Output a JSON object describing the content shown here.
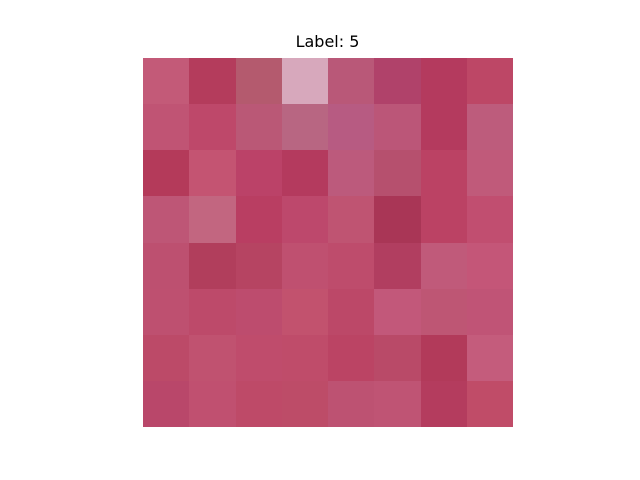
{
  "figure": {
    "title": "Label: 5"
  },
  "image": {
    "rows": 8,
    "cols": 8,
    "pixels": [
      [
        "#c35a78",
        "#b43c5c",
        "#b45a6e",
        "#d7a8bc",
        "#b95878",
        "#b0426a",
        "#b43a5e",
        "#bd4766"
      ],
      [
        "#c05474",
        "#be486a",
        "#ba5876",
        "#b86682",
        "#b75b82",
        "#bb5678",
        "#b43a5e",
        "#bd5c7c"
      ],
      [
        "#b43a5a",
        "#c45472",
        "#bb4268",
        "#b43a5e",
        "#bc5a7c",
        "#b6506e",
        "#bb4264",
        "#c05a7a"
      ],
      [
        "#be5676",
        "#c26680",
        "#b93e62",
        "#bd486c",
        "#bf5472",
        "#a93656",
        "#bb4264",
        "#c14e70"
      ],
      [
        "#bd5070",
        "#b13e5c",
        "#b64462",
        "#bf5070",
        "#be4c6c",
        "#b13e60",
        "#c05a7a",
        "#c45678"
      ],
      [
        "#be5070",
        "#bd4a6a",
        "#bd4c6e",
        "#c2526e",
        "#bc4868",
        "#c2587a",
        "#be5674",
        "#c05476"
      ],
      [
        "#bc4a68",
        "#c05270",
        "#bf4c6c",
        "#bf4c6a",
        "#bb4464",
        "#b94a68",
        "#b23a5a",
        "#c45c7c"
      ],
      [
        "#b9476a",
        "#c05070",
        "#be4a68",
        "#bd4c68",
        "#bd5272",
        "#bf5474",
        "#b43c5e",
        "#c04c68"
      ]
    ]
  }
}
